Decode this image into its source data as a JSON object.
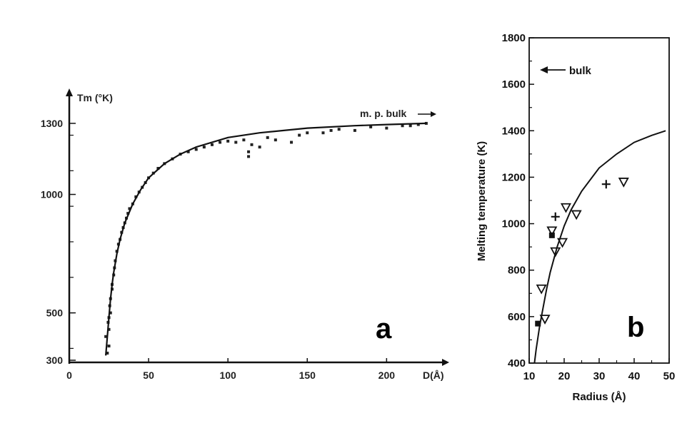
{
  "chart_data": [
    {
      "type": "scatter",
      "panel_label": "a",
      "ylabel": "Tm (°K)",
      "xlabel": "D(Å)",
      "annotation": "m. p. bulk",
      "xlim": [
        0,
        230
      ],
      "ylim": [
        300,
        1360
      ],
      "x_ticks": [
        0,
        50,
        100,
        150,
        200
      ],
      "y_ticks": [
        300,
        500,
        1000,
        1300
      ],
      "grid": false,
      "series": [
        {
          "values": [
            [
              24,
              330
            ],
            [
              25,
              360
            ],
            [
              23,
              400
            ],
            [
              25,
              430
            ],
            [
              24.5,
              460
            ],
            [
              25,
              480
            ],
            [
              26,
              500
            ],
            [
              25.5,
              530
            ],
            [
              26,
              560
            ],
            [
              27,
              600
            ],
            [
              27,
              620
            ],
            [
              28,
              660
            ],
            [
              28.5,
              690
            ],
            [
              29,
              720
            ],
            [
              30,
              760
            ],
            [
              31,
              790
            ],
            [
              32,
              810
            ],
            [
              33,
              840
            ],
            [
              34,
              860
            ],
            [
              35,
              880
            ],
            [
              36,
              900
            ],
            [
              37,
              920
            ],
            [
              38,
              940
            ],
            [
              40,
              960
            ],
            [
              42,
              990
            ],
            [
              44,
              1010
            ],
            [
              46,
              1030
            ],
            [
              48,
              1050
            ],
            [
              50,
              1070
            ],
            [
              53,
              1090
            ],
            [
              56,
              1110
            ],
            [
              60,
              1130
            ],
            [
              65,
              1150
            ],
            [
              70,
              1170
            ],
            [
              75,
              1180
            ],
            [
              80,
              1190
            ],
            [
              85,
              1200
            ],
            [
              90,
              1210
            ],
            [
              95,
              1220
            ],
            [
              100,
              1225
            ],
            [
              105,
              1220
            ],
            [
              110,
              1230
            ],
            [
              113,
              1180
            ],
            [
              113,
              1160
            ],
            [
              115,
              1210
            ],
            [
              120,
              1200
            ],
            [
              125,
              1240
            ],
            [
              130,
              1230
            ],
            [
              140,
              1220
            ],
            [
              145,
              1250
            ],
            [
              150,
              1260
            ],
            [
              160,
              1260
            ],
            [
              165,
              1270
            ],
            [
              170,
              1275
            ],
            [
              180,
              1270
            ],
            [
              190,
              1285
            ],
            [
              200,
              1280
            ],
            [
              210,
              1290
            ],
            [
              215,
              1290
            ],
            [
              220,
              1295
            ],
            [
              225,
              1300
            ]
          ]
        }
      ],
      "fit_curve": [
        [
          23,
          320
        ],
        [
          24,
          400
        ],
        [
          25,
          480
        ],
        [
          26,
          560
        ],
        [
          27,
          620
        ],
        [
          28,
          670
        ],
        [
          30,
          750
        ],
        [
          32,
          810
        ],
        [
          35,
          880
        ],
        [
          40,
          960
        ],
        [
          45,
          1020
        ],
        [
          50,
          1070
        ],
        [
          60,
          1130
        ],
        [
          70,
          1170
        ],
        [
          80,
          1200
        ],
        [
          100,
          1240
        ],
        [
          120,
          1260
        ],
        [
          150,
          1280
        ],
        [
          180,
          1290
        ],
        [
          200,
          1295
        ],
        [
          225,
          1300
        ]
      ]
    },
    {
      "type": "scatter",
      "panel_label": "b",
      "ylabel": "Melting temperature (K)",
      "xlabel": "Radius (Å)",
      "annotation": "bulk",
      "bulk_value": 1660,
      "xlim": [
        10,
        50
      ],
      "ylim": [
        400,
        1800
      ],
      "x_ticks": [
        10,
        20,
        30,
        40,
        50
      ],
      "y_ticks": [
        400,
        600,
        800,
        1000,
        1200,
        1400,
        1600,
        1800
      ],
      "grid": false,
      "series": [
        {
          "marker": "triangle-down",
          "values": [
            [
              13.5,
              720
            ],
            [
              14.5,
              590
            ],
            [
              16.5,
              970
            ],
            [
              17.5,
              880
            ],
            [
              19.5,
              920
            ],
            [
              20.5,
              1070
            ],
            [
              23.5,
              1040
            ],
            [
              37,
              1180
            ]
          ]
        },
        {
          "marker": "plus",
          "values": [
            [
              17.5,
              1030
            ],
            [
              32,
              1170
            ]
          ]
        },
        {
          "marker": "square",
          "values": [
            [
              12.5,
              570
            ],
            [
              16.5,
              950
            ]
          ]
        }
      ],
      "fit_curve": [
        [
          11.5,
          400
        ],
        [
          12,
          460
        ],
        [
          13,
          560
        ],
        [
          14,
          640
        ],
        [
          15,
          720
        ],
        [
          16,
          790
        ],
        [
          18,
          900
        ],
        [
          20,
          990
        ],
        [
          22,
          1060
        ],
        [
          25,
          1140
        ],
        [
          30,
          1240
        ],
        [
          35,
          1300
        ],
        [
          40,
          1350
        ],
        [
          45,
          1380
        ],
        [
          49,
          1400
        ]
      ]
    }
  ]
}
